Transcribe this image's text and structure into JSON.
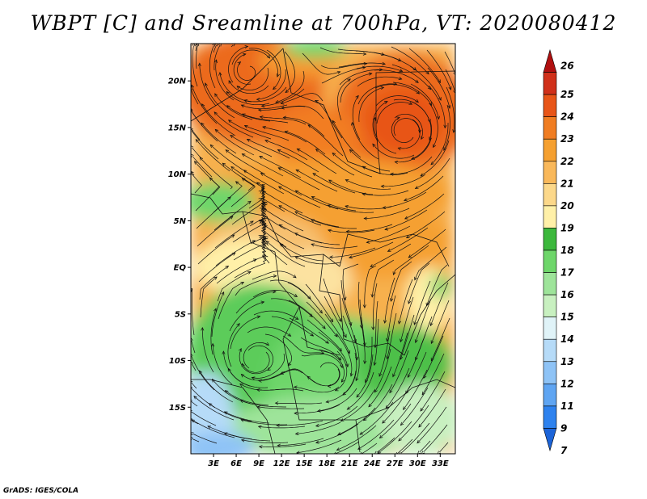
{
  "title": "WBPT [C] and Sreamline at 700hPa, VT: 2020080412",
  "credit": "GrADS: IGES/COLA",
  "chart_data": {
    "type": "heatmap",
    "title": "WBPT [C] and Sreamline at 700hPa, VT: 2020080412",
    "variable": "Wet-bulb potential temperature",
    "units": "C",
    "level": "700hPa",
    "valid_time": "2020080412",
    "overlay": "streamlines",
    "region": {
      "lon_range": [
        0,
        35
      ],
      "lat_range": [
        -20,
        24
      ]
    },
    "x_ticks": [
      {
        "value": 3,
        "label": "3E"
      },
      {
        "value": 6,
        "label": "6E"
      },
      {
        "value": 9,
        "label": "9E"
      },
      {
        "value": 12,
        "label": "12E"
      },
      {
        "value": 15,
        "label": "15E"
      },
      {
        "value": 18,
        "label": "18E"
      },
      {
        "value": 21,
        "label": "21E"
      },
      {
        "value": 24,
        "label": "24E"
      },
      {
        "value": 27,
        "label": "27E"
      },
      {
        "value": 30,
        "label": "30E"
      },
      {
        "value": 33,
        "label": "33E"
      }
    ],
    "y_ticks": [
      {
        "value": 20,
        "label": "20N"
      },
      {
        "value": 15,
        "label": "15N"
      },
      {
        "value": 10,
        "label": "10N"
      },
      {
        "value": 5,
        "label": "5N"
      },
      {
        "value": 0,
        "label": "EQ"
      },
      {
        "value": -5,
        "label": "5S"
      },
      {
        "value": -10,
        "label": "10S"
      },
      {
        "value": -15,
        "label": "15S"
      }
    ],
    "legend": {
      "labels": [
        "7",
        "9",
        "11",
        "12",
        "13",
        "14",
        "15",
        "16",
        "17",
        "18",
        "19",
        "20",
        "21",
        "22",
        "23",
        "24",
        "25",
        "26"
      ],
      "colors": [
        "#1c64d8",
        "#2e82ee",
        "#5fa5f2",
        "#8ec3f6",
        "#b6dbf8",
        "#e0f3f8",
        "#c8f0c0",
        "#9ee49a",
        "#6ed66a",
        "#3cb83c",
        "#fff0a8",
        "#fcd88a",
        "#f9b85a",
        "#f5a030",
        "#f07d22",
        "#e85518",
        "#d0301a",
        "#b01010"
      ],
      "placement": "right"
    },
    "vortices": [
      {
        "lon": 28.5,
        "lat": 14.5,
        "label": "cyclonic circulation over Sudan/Chad"
      },
      {
        "lon": 7.5,
        "lat": 21,
        "label": "circulation over Niger/Algeria"
      },
      {
        "lon": 8.5,
        "lat": -10,
        "label": "circulation off Angola coast"
      },
      {
        "lon": 18.5,
        "lat": -11.5,
        "label": "circulation over Angola interior"
      }
    ]
  }
}
